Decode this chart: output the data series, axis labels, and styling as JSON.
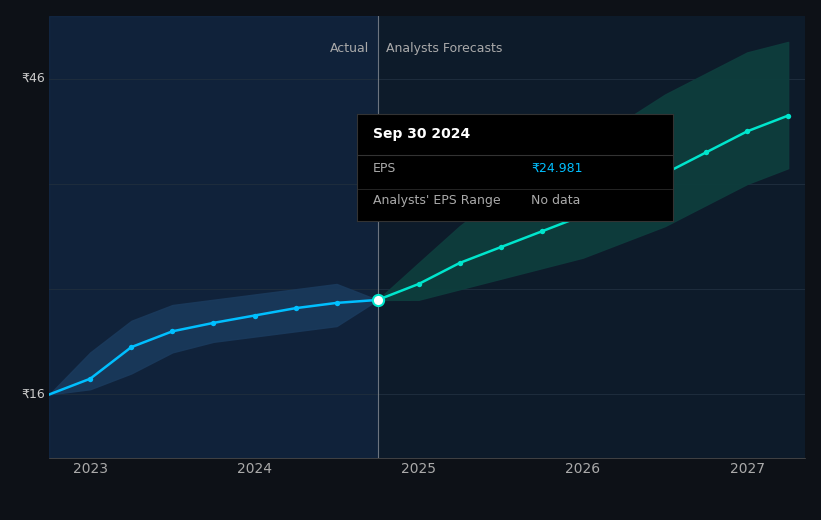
{
  "bg_color": "#0d1117",
  "plot_bg_color": "#0d1b2a",
  "grid_color": "#1e2d3d",
  "title_text": "Sep 30 2024",
  "tooltip_eps_label": "EPS",
  "tooltip_eps_value": "₹24.981",
  "tooltip_range_label": "Analysts' EPS Range",
  "tooltip_range_value": "No data",
  "y_label_46": "₹46",
  "y_label_16": "₹16",
  "x_ticks": [
    2023,
    2024,
    2025,
    2026,
    2027
  ],
  "y_lim": [
    10,
    52
  ],
  "x_lim": [
    2022.75,
    2027.35
  ],
  "divider_x": 2024.75,
  "actual_label": "Actual",
  "forecast_label": "Analysts Forecasts",
  "eps_actual_x": [
    2022.75,
    2023.0,
    2023.25,
    2023.5,
    2023.75,
    2024.0,
    2024.25,
    2024.5,
    2024.75
  ],
  "eps_actual_y": [
    16.0,
    17.5,
    20.5,
    22.0,
    22.8,
    23.5,
    24.2,
    24.7,
    24.981
  ],
  "eps_range_actual_lower": [
    16.0,
    16.5,
    18.0,
    20.0,
    21.0,
    21.5,
    22.0,
    22.5,
    24.981
  ],
  "eps_range_actual_upper": [
    16.0,
    20.0,
    23.0,
    24.5,
    25.0,
    25.5,
    26.0,
    26.5,
    24.981
  ],
  "eps_forecast_x": [
    2024.75,
    2025.0,
    2025.25,
    2025.5,
    2025.75,
    2026.0,
    2026.25,
    2026.5,
    2026.75,
    2027.0,
    2027.25
  ],
  "eps_forecast_y": [
    24.981,
    26.5,
    28.5,
    30.0,
    31.5,
    33.0,
    35.0,
    37.0,
    39.0,
    41.0,
    42.5
  ],
  "eps_range_forecast_lower": [
    24.981,
    25.0,
    26.0,
    27.0,
    28.0,
    29.0,
    30.5,
    32.0,
    34.0,
    36.0,
    37.5
  ],
  "eps_range_forecast_upper": [
    24.981,
    28.5,
    32.0,
    35.0,
    37.5,
    39.5,
    42.0,
    44.5,
    46.5,
    48.5,
    49.5
  ],
  "eps_color": "#00bfff",
  "eps_forecast_color": "#00e5cc",
  "range_actual_color": "#1a3a5c",
  "range_forecast_color": "#0d3d3d",
  "legend_eps_color": "#00bfff",
  "legend_range_color": "#2a9d8f",
  "tooltip_bg": "#000000",
  "tooltip_border": "#333333",
  "tooltip_value_color": "#00bfff",
  "marker_size": 5,
  "highlight_x": 2024.75,
  "highlight_y": 24.981
}
